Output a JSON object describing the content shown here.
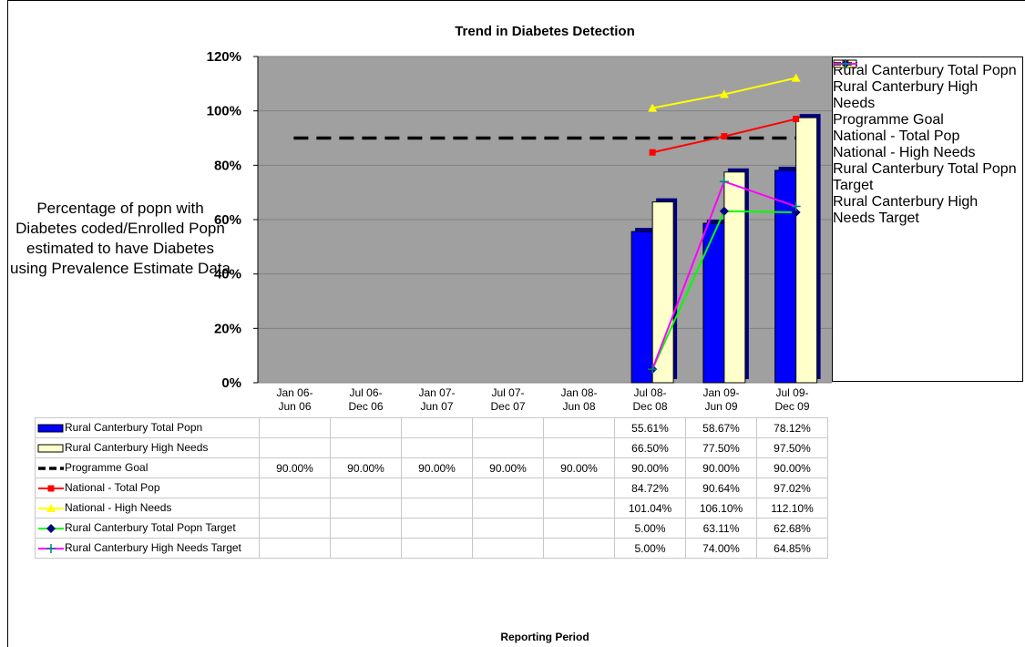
{
  "chart_data": {
    "type": "bar",
    "title": "Trend in Diabetes Detection",
    "y_label": "Percentage of popn with Diabetes coded/Enrolled Popn estimated to have Diabetes using Prevalence Estimate Data",
    "x_label": "Reporting Period",
    "categories": [
      "Jan 06-\nJun 06",
      "Jul 06-\nDec 06",
      "Jan 07-\nJun 07",
      "Jul 07-\nDec 07",
      "Jan 08-\nJun 08",
      "Jul 08-\nDec 08",
      "Jan 09-\nJun 09",
      "Jul 09-\nDec 09"
    ],
    "ylim": [
      0,
      120
    ],
    "yticks": [
      {
        "value": 0,
        "label": "0%"
      },
      {
        "value": 20,
        "label": "20%"
      },
      {
        "value": 40,
        "label": "40%"
      },
      {
        "value": 60,
        "label": "60%"
      },
      {
        "value": 80,
        "label": "80%"
      },
      {
        "value": 100,
        "label": "100%"
      },
      {
        "value": 120,
        "label": "120%"
      }
    ],
    "grid": true,
    "series": [
      {
        "name": "Rural Canterbury Total Popn",
        "kind": "bar",
        "color": "#0000ff",
        "values": [
          null,
          null,
          null,
          null,
          null,
          55.61,
          58.67,
          78.12
        ],
        "value_labels": [
          null,
          null,
          null,
          null,
          null,
          "55.61%",
          "58.67%",
          "78.12%"
        ]
      },
      {
        "name": "Rural Canterbury High Needs",
        "kind": "bar",
        "color": "#ffffcc",
        "values": [
          null,
          null,
          null,
          null,
          null,
          66.5,
          77.5,
          97.5
        ],
        "value_labels": [
          null,
          null,
          null,
          null,
          null,
          "66.50%",
          "77.50%",
          "97.50%"
        ]
      },
      {
        "name": "Programme Goal",
        "kind": "line",
        "dashed": true,
        "color": "#000000",
        "values": [
          90,
          90,
          90,
          90,
          90,
          90,
          90,
          90
        ],
        "value_labels": [
          "90.00%",
          "90.00%",
          "90.00%",
          "90.00%",
          "90.00%",
          "90.00%",
          "90.00%",
          "90.00%"
        ]
      },
      {
        "name": "National - Total Pop",
        "kind": "line",
        "color": "#ff0000",
        "marker": "square",
        "marker_color": "#ff0000",
        "values": [
          null,
          null,
          null,
          null,
          null,
          84.72,
          90.64,
          97.02
        ],
        "value_labels": [
          null,
          null,
          null,
          null,
          null,
          "84.72%",
          "90.64%",
          "97.02%"
        ]
      },
      {
        "name": "National - High Needs",
        "kind": "line",
        "color": "#ffff00",
        "marker": "triangle",
        "marker_color": "#ffff00",
        "values": [
          null,
          null,
          null,
          null,
          null,
          101.04,
          106.1,
          112.1
        ],
        "value_labels": [
          null,
          null,
          null,
          null,
          null,
          "101.04%",
          "106.10%",
          "112.10%"
        ]
      },
      {
        "name": "Rural Canterbury Total Popn Target",
        "kind": "line",
        "color": "#00ff00",
        "marker": "diamond",
        "marker_color": "#000080",
        "values": [
          null,
          null,
          null,
          null,
          null,
          5,
          63.11,
          62.68
        ],
        "value_labels": [
          null,
          null,
          null,
          null,
          null,
          "5.00%",
          "63.11%",
          "62.68%"
        ]
      },
      {
        "name": "Rural Canterbury High Needs Target",
        "kind": "line",
        "color": "#ff00ff",
        "marker": "plus",
        "marker_color": "#008080",
        "values": [
          null,
          null,
          null,
          null,
          null,
          5,
          74,
          64.85
        ],
        "value_labels": [
          null,
          null,
          null,
          null,
          null,
          "5.00%",
          "74.00%",
          "64.85%"
        ]
      }
    ]
  }
}
